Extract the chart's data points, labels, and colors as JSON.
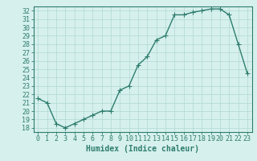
{
  "x": [
    0,
    1,
    2,
    3,
    4,
    5,
    6,
    7,
    8,
    9,
    10,
    11,
    12,
    13,
    14,
    15,
    16,
    17,
    18,
    19,
    20,
    21,
    22,
    23
  ],
  "y": [
    21.5,
    21.0,
    18.5,
    18.0,
    18.5,
    19.0,
    19.5,
    20.0,
    20.0,
    22.5,
    23.0,
    25.5,
    26.5,
    28.5,
    29.0,
    31.5,
    31.5,
    31.8,
    32.0,
    32.2,
    32.2,
    31.5,
    28.0,
    24.5
  ],
  "line_color": "#2e7d6e",
  "marker": "+",
  "marker_size": 4,
  "bg_color": "#d6f0ed",
  "grid_color": "#b0d8d3",
  "xlabel": "Humidex (Indice chaleur)",
  "xlim": [
    -0.5,
    23.5
  ],
  "ylim": [
    17.5,
    32.5
  ],
  "yticks": [
    18,
    19,
    20,
    21,
    22,
    23,
    24,
    25,
    26,
    27,
    28,
    29,
    30,
    31,
    32
  ],
  "xticks": [
    0,
    1,
    2,
    3,
    4,
    5,
    6,
    7,
    8,
    9,
    10,
    11,
    12,
    13,
    14,
    15,
    16,
    17,
    18,
    19,
    20,
    21,
    22,
    23
  ],
  "tick_color": "#2e7d6e",
  "label_fontsize": 6,
  "xlabel_fontsize": 7,
  "linewidth": 1.0,
  "markeredgewidth": 0.8
}
